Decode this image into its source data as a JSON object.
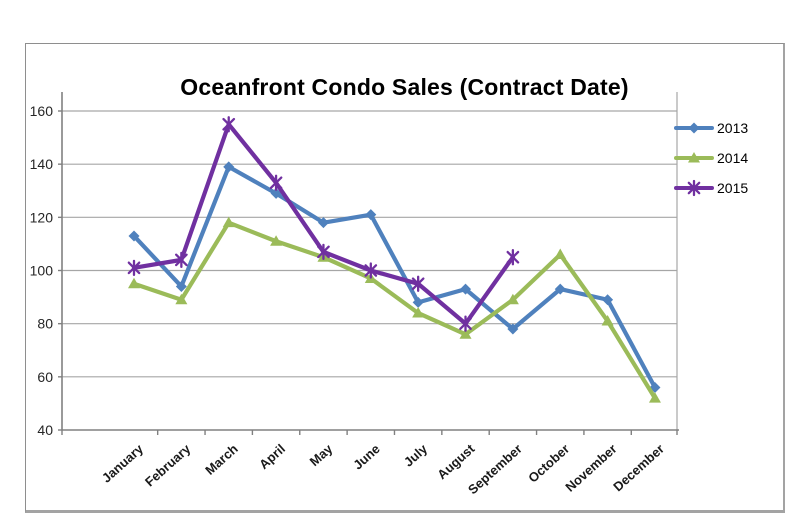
{
  "chart": {
    "title": "Oceanfront Condo Sales (Contract Date)"
  },
  "chart_data": {
    "type": "line",
    "title": "Oceanfront Condo Sales (Contract Date)",
    "categories": [
      "January",
      "February",
      "March",
      "April",
      "May",
      "June",
      "July",
      "August",
      "September",
      "October",
      "November",
      "December"
    ],
    "series": [
      {
        "name": "2013",
        "color": "#4F81BD",
        "marker": "diamond",
        "values": [
          113,
          94,
          139,
          129,
          118,
          121,
          88,
          93,
          78,
          93,
          89,
          56
        ]
      },
      {
        "name": "2014",
        "color": "#9BBB59",
        "marker": "triangle",
        "values": [
          95,
          89,
          118,
          111,
          105,
          97,
          84,
          76,
          89,
          106,
          81,
          52
        ]
      },
      {
        "name": "2015",
        "color": "#7030A0",
        "marker": "star",
        "values": [
          101,
          104,
          155,
          133,
          107,
          100,
          95,
          80,
          105,
          null,
          null,
          null
        ]
      }
    ],
    "xlabel": "",
    "ylabel": "",
    "ylim": [
      40,
      160
    ],
    "yticks": [
      40,
      60,
      80,
      100,
      120,
      140,
      160
    ],
    "grid": true,
    "legend_position": "right",
    "axis_color": "#808080",
    "grid_color": "#A6A6A6",
    "label_color": "#262626"
  }
}
